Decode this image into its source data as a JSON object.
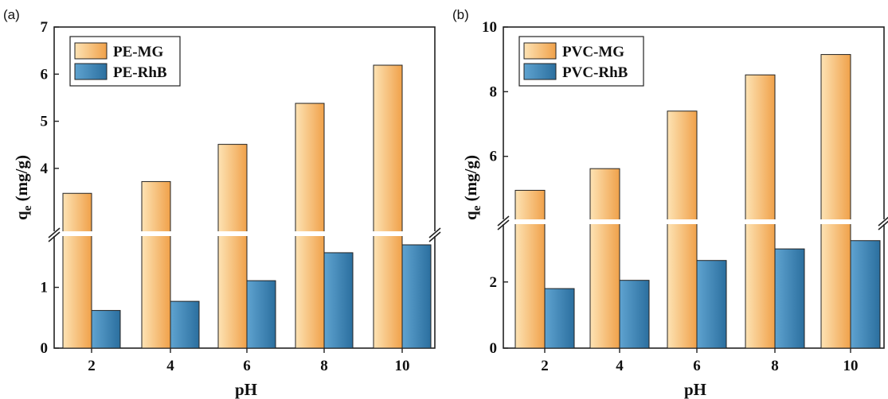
{
  "colors": {
    "mg_light": "#fde3b4",
    "mg_dark": "#f0a14a",
    "rhb_light": "#5fa3d0",
    "rhb_dark": "#2b6f9f",
    "edge": "#222222"
  },
  "chart_data": [
    {
      "type": "bar",
      "panel_label": "(a)",
      "xlabel": "pH",
      "ylabel": "q",
      "ylabel_sub": "e",
      "ylabel_unit": " (mg/g)",
      "categories": [
        "2",
        "4",
        "6",
        "8",
        "10"
      ],
      "y_broken": true,
      "y_lower_range": [
        0,
        1.7
      ],
      "y_upper_range": [
        2.85,
        7
      ],
      "y_lower_ticks": [
        0,
        1
      ],
      "y_upper_ticks": [
        4,
        5,
        6,
        7
      ],
      "legend_position": "top-left",
      "series": [
        {
          "name": "PE-MG",
          "values": [
            3.47,
            3.72,
            4.51,
            5.38,
            6.19
          ]
        },
        {
          "name": "PE-RhB",
          "values": [
            0.62,
            0.77,
            1.11,
            1.57,
            1.73
          ]
        }
      ]
    },
    {
      "type": "bar",
      "panel_label": "(b)",
      "xlabel": "pH",
      "ylabel": "q",
      "ylabel_sub": "e",
      "ylabel_unit": " (mg/g)",
      "categories": [
        "2",
        "4",
        "6",
        "8",
        "10"
      ],
      "y_broken": true,
      "y_lower_range": [
        0,
        3.7
      ],
      "y_upper_range": [
        4.1,
        10
      ],
      "y_lower_ticks": [
        0,
        2
      ],
      "y_upper_ticks": [
        6,
        8,
        10
      ],
      "legend_position": "top-left",
      "series": [
        {
          "name": "PVC-MG",
          "values": [
            4.95,
            5.62,
            7.4,
            8.52,
            9.15
          ]
        },
        {
          "name": "PVC-RhB",
          "values": [
            1.8,
            2.05,
            2.65,
            3.0,
            3.25
          ]
        }
      ]
    }
  ]
}
